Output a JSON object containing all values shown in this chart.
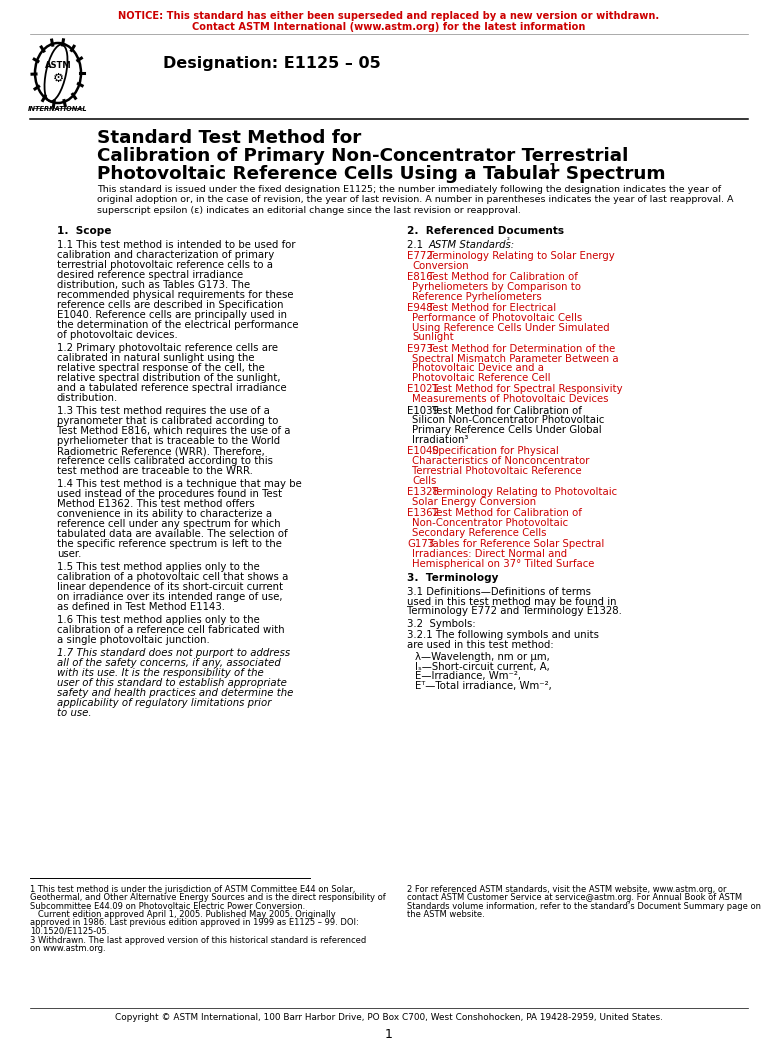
{
  "notice_line1": "NOTICE: This standard has either been superseded and replaced by a new version or withdrawn.",
  "notice_line2": "Contact ASTM International (www.astm.org) for the latest information",
  "notice_color": "#CC0000",
  "designation": "Designation: E1125 – 05",
  "title_line1": "Standard Test Method for",
  "title_line2": "Calibration of Primary Non-Concentrator Terrestrial",
  "title_line3": "Photovoltaic Reference Cells Using a Tabular Spectrum",
  "title_sup": "1",
  "preamble_lines": [
    "This standard is issued under the fixed designation E1125; the number immediately following the designation indicates the year of",
    "original adoption or, in the case of revision, the year of last revision. A number in parentheses indicates the year of last reapproval. A",
    "superscript epsilon (ε) indicates an editorial change since the last revision or reapproval."
  ],
  "sec1_head": "1.  Scope",
  "sec2_head": "2.  Referenced Documents",
  "sec3_head": "3.  Terminology",
  "refs": [
    {
      "code": "E772",
      "color": "#CC0000",
      "text": "Terminology Relating to Solar Energy Conversion"
    },
    {
      "code": "E816",
      "color": "#CC0000",
      "text": "Test Method for Calibration of Pyrheliometers by Comparison to Reference Pyrheliometers"
    },
    {
      "code": "E948",
      "color": "#CC0000",
      "text": "Test Method for Electrical Performance of Photovoltaic Cells Using Reference Cells Under Simulated Sunlight"
    },
    {
      "code": "E973",
      "color": "#CC0000",
      "text": "Test Method for Determination of the Spectral Mismatch Parameter Between a Photovoltaic Device and a Photovoltaic Reference Cell"
    },
    {
      "code": "E1021",
      "color": "#CC0000",
      "text": "Test Method for Spectral Responsivity Measurements of Photovoltaic Devices"
    },
    {
      "code": "E1039",
      "color": "#000000",
      "text": "Test Method for Calibration of Silicon Non-Concentrator Photovoltaic Primary Reference Cells Under Global Irradiation³"
    },
    {
      "code": "E1040",
      "color": "#CC0000",
      "text": "Specification for Physical Characteristics of Nonconcentrator Terrestrial Photovoltaic Reference Cells"
    },
    {
      "code": "E1328",
      "color": "#CC0000",
      "text": "Terminology Relating to Photovoltaic Solar Energy Conversion"
    },
    {
      "code": "E1362",
      "color": "#CC0000",
      "text": "Test Method for Calibration of Non-Concentrator Photovoltaic Secondary Reference Cells"
    },
    {
      "code": "G173",
      "color": "#CC0000",
      "text": "Tables for Reference Solar Spectral Irradiances: Direct Normal and Hemispherical on 37° Tilted Surface"
    }
  ],
  "symbols": [
    "λ—Wavelength, nm or μm,",
    "Iₛ—Short-circuit current, A,",
    "E—Irradiance, Wm⁻²,",
    "Eᵀ—Total irradiance, Wm⁻²,"
  ],
  "fn1_lines": [
    "1 This test method is under the jurisdiction of ASTM Committee E44 on Solar,",
    "Geothermal, and Other Alternative Energy Sources and is the direct responsibility of",
    "Subcommittee E44.09 on Photovoltaic Electric Power Conversion.",
    "   Current edition approved April 1, 2005. Published May 2005. Originally",
    "approved in 1986. Last previous edition approved in 1999 as E1125 – 99. DOI:",
    "10.1520/E1125-05."
  ],
  "fn2_lines": [
    "2 For referenced ASTM standards, visit the ASTM website, www.astm.org, or",
    "contact ASTM Customer Service at service@astm.org. For Annual Book of ASTM",
    "Standards volume information, refer to the standard’s Document Summary page on",
    "the ASTM website."
  ],
  "fn3_lines": [
    "3 Withdrawn. The last approved version of this historical standard is referenced",
    "on www.astm.org."
  ],
  "footer": "Copyright © ASTM International, 100 Barr Harbor Drive, PO Box C700, West Conshohocken, PA 19428-2959, United States.",
  "page_number": "1",
  "bg_color": "#FFFFFF",
  "red": "#CC0000",
  "black": "#000000"
}
